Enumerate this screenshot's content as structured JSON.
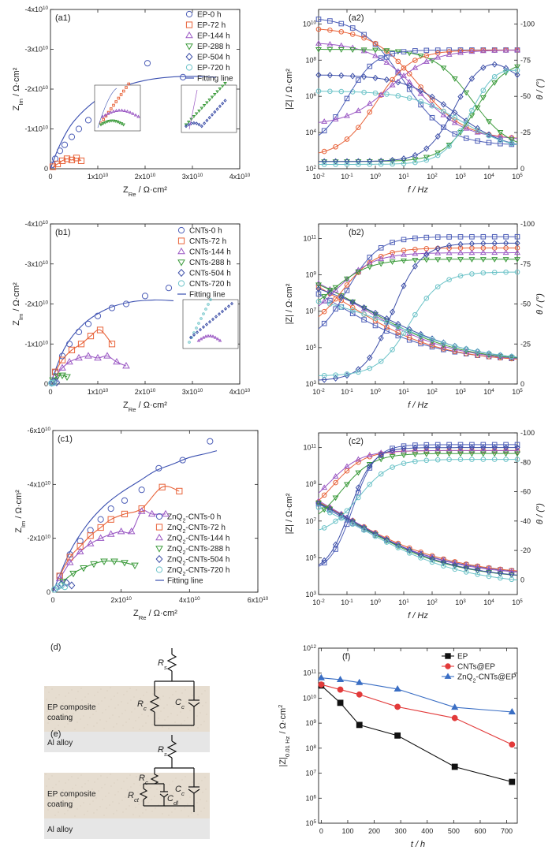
{
  "chart_data": [
    {
      "id": "a1",
      "type": "scatter",
      "panel_label": "(a1)",
      "xlabel": "Z_Re / Ω·cm²",
      "ylabel": "Z_Im / Ω·cm²",
      "xlim": [
        0,
        40000000000.0
      ],
      "ylim": [
        0,
        -40000000000.0
      ],
      "xticks": [
        "0",
        "1x10^10",
        "2x10^10",
        "3x10^10",
        "4x10^10"
      ],
      "yticks": [
        "0",
        "-1x10^10",
        "-2x10^10",
        "-3x10^10",
        "-4x10^10"
      ],
      "legend_position": "top-right",
      "series": [
        {
          "name": "EP-0 h",
          "marker": "circle",
          "color": "#4e5fb8",
          "x": [
            500000000.0,
            1000000000.0,
            2000000000.0,
            3000000000.0,
            4500000000.0,
            6000000000.0,
            8000000000.0,
            10000000000.0,
            13000000000.0,
            16000000000.0,
            20500000000.0,
            28000000000.0
          ],
          "y": [
            -1000000000.0,
            -2500000000.0,
            -4500000000.0,
            -6000000000.0,
            -8000000000.0,
            -10000000000.0,
            -12200000000.0,
            -14500000000.0,
            -16000000000.0,
            -17500000000.0,
            -26500000000.0,
            -23000000000.0
          ]
        },
        {
          "name": "EP-72 h",
          "marker": "square",
          "color": "#e8633a",
          "x": [
            500000000.0,
            1500000000.0,
            2500000000.0,
            3500000000.0,
            4500000000.0,
            5500000000.0,
            6500000000.0
          ],
          "y": [
            -500000000.0,
            -1200000000.0,
            -2000000000.0,
            -2500000000.0,
            -2200000000.0,
            -2700000000.0,
            -2000000000.0
          ]
        },
        {
          "name": "EP-144 h",
          "marker": "triangle-up",
          "color": "#9b59c4",
          "x": [],
          "y": []
        },
        {
          "name": "EP-288 h",
          "marker": "triangle-down",
          "color": "#3a9a3a",
          "x": [],
          "y": []
        },
        {
          "name": "EP-504 h",
          "marker": "diamond",
          "color": "#3d4fa8",
          "x": [],
          "y": []
        },
        {
          "name": "EP-720 h",
          "marker": "hexagon",
          "color": "#6cc3c8",
          "x": [],
          "y": []
        }
      ],
      "fit": {
        "name": "Fitting line",
        "color": "#3a4fb0",
        "x": [
          0,
          2000000000.0,
          5000000000.0,
          10000000000.0,
          15000000000.0,
          20000000000.0,
          25000000000.0,
          30000000000.0,
          35000000000.0
        ],
        "y": [
          0,
          -6000000000.0,
          -12000000000.0,
          -17500000000.0,
          -20500000000.0,
          -22200000000.0,
          -23000000000.0,
          -23200000000.0,
          -23000000000.0
        ]
      }
    },
    {
      "id": "a2",
      "type": "line",
      "panel_label": "(a2)",
      "xlabel": "f / Hz",
      "ylabel": "|Z| / Ω·cm²",
      "y2label": "θ / (°)",
      "xscale": "log",
      "yscale": "log",
      "xticks": [
        "10^-2",
        "10^-1",
        "10^0",
        "10^1",
        "10^2",
        "10^3",
        "10^4",
        "10^5"
      ],
      "yticks": [
        "10^2",
        "10^4",
        "10^6",
        "10^8",
        "10^10"
      ],
      "y2ticks": [
        "-100",
        "-75",
        "-50",
        "-25",
        "0"
      ],
      "y2lim": [
        0,
        -110
      ]
    },
    {
      "id": "b1",
      "type": "scatter",
      "panel_label": "(b1)",
      "xlabel": "Z_Re / Ω·cm²",
      "ylabel": "Z_Im / Ω·cm²",
      "xlim": [
        0,
        40000000000.0
      ],
      "ylim": [
        0,
        -40000000000.0
      ],
      "xticks": [
        "0",
        "1x10^10",
        "2x10^10",
        "3x10^10",
        "4x10^10"
      ],
      "yticks": [
        "0",
        "-1x10^10",
        "-2x10^10",
        "-3x10^10",
        "-4x10^10"
      ],
      "legend_position": "top-right",
      "series": [
        {
          "name": "CNTs-0 h",
          "marker": "circle",
          "color": "#4e5fb8",
          "x": [
            1000000000.0,
            2500000000.0,
            4000000000.0,
            6000000000.0,
            8000000000.0,
            10000000000.0,
            13000000000.0,
            16000000000.0,
            20000000000.0,
            25000000000.0
          ],
          "y": [
            -3000000000.0,
            -7000000000.0,
            -10000000000.0,
            -13000000000.0,
            -15000000000.0,
            -17000000000.0,
            -19000000000.0,
            -20000000000.0,
            -22000000000.0,
            -24000000000.0
          ]
        },
        {
          "name": "CNTs-72 h",
          "marker": "square",
          "color": "#e8633a",
          "x": [
            1000000000.0,
            2500000000.0,
            4500000000.0,
            6500000000.0,
            8500000000.0,
            10500000000.0,
            13000000000.0
          ],
          "y": [
            -3000000000.0,
            -6000000000.0,
            -8500000000.0,
            -10000000000.0,
            -12000000000.0,
            -13500000000.0,
            -10000000000.0
          ]
        },
        {
          "name": "CNTs-144 h",
          "marker": "triangle-up",
          "color": "#9b59c4",
          "x": [
            1000000000.0,
            2500000000.0,
            4000000000.0,
            6000000000.0,
            8000000000.0,
            10000000000.0,
            12000000000.0,
            14000000000.0,
            16000000000.0
          ],
          "y": [
            -2000000000.0,
            -4000000000.0,
            -5500000000.0,
            -6500000000.0,
            -7000000000.0,
            -6500000000.0,
            -7000000000.0,
            -5500000000.0,
            -4500000000.0
          ]
        },
        {
          "name": "CNTs-288 h",
          "marker": "triangle-down",
          "color": "#3a9a3a",
          "x": [
            500000000.0,
            1500000000.0,
            2500000000.0,
            3500000000.0
          ],
          "y": [
            -1000000000.0,
            -2000000000.0,
            -2200000000.0,
            -1800000000.0
          ]
        },
        {
          "name": "CNTs-504 h",
          "marker": "diamond",
          "color": "#3d4fa8",
          "x": [
            300000000.0,
            800000000.0,
            1300000000.0
          ],
          "y": [
            -300000000.0,
            -600000000.0,
            -400000000.0
          ]
        },
        {
          "name": "CNTs-720 h",
          "marker": "hexagon",
          "color": "#6cc3c8",
          "x": [
            200000000.0,
            600000000.0
          ],
          "y": [
            -200000000.0,
            -300000000.0
          ]
        }
      ],
      "fit": {
        "name": "Fitting line",
        "color": "#3a4fb0",
        "x": [
          0,
          3000000000.0,
          7000000000.0,
          12000000000.0,
          17000000000.0,
          22000000000.0,
          26000000000.0
        ],
        "y": [
          0,
          -9000000000.0,
          -15000000000.0,
          -18800000000.0,
          -20500000000.0,
          -21000000000.0,
          -20800000000.0
        ]
      }
    },
    {
      "id": "b2",
      "type": "line",
      "panel_label": "(b2)",
      "xlabel": "f / Hz",
      "ylabel": "|Z| / Ω·cm²",
      "y2label": "θ / (°)",
      "xscale": "log",
      "yscale": "log",
      "xticks": [
        "10^-2",
        "10^-1",
        "10^0",
        "10^1",
        "10^2",
        "10^3",
        "10^4",
        "10^5"
      ],
      "yticks": [
        "10^3",
        "10^5",
        "10^7",
        "10^9",
        "10^11"
      ],
      "y2ticks": [
        "-100",
        "-75",
        "-50",
        "-25",
        "0"
      ],
      "y2lim": [
        0,
        -100
      ]
    },
    {
      "id": "c1",
      "type": "scatter",
      "panel_label": "(c1)",
      "xlabel": "Z_Re / Ω·cm²",
      "ylabel": "Z_Im / Ω·cm²",
      "xlim": [
        0,
        60000000000.0
      ],
      "ylim": [
        0,
        -60000000000.0
      ],
      "xticks": [
        "0",
        "2x10^10",
        "4x10^10",
        "6x10^10"
      ],
      "yticks": [
        "0",
        "-2x10^10",
        "-4x10^10",
        "-6x10^10"
      ],
      "legend_position": "bottom-right",
      "series": [
        {
          "name": "ZnQ2-CNTs-0 h",
          "marker": "circle",
          "color": "#4e5fb8",
          "x": [
            2000000000.0,
            5000000000.0,
            8000000000.0,
            11000000000.0,
            14000000000.0,
            17000000000.0,
            21000000000.0,
            26000000000.0,
            31000000000.0,
            38000000000.0,
            46000000000.0
          ],
          "y": [
            -6000000000.0,
            -14000000000.0,
            -19000000000.0,
            -23000000000.0,
            -27000000000.0,
            -31000000000.0,
            -34000000000.0,
            -38000000000.0,
            -46000000000.0,
            -49000000000.0,
            -56000000000.0
          ]
        },
        {
          "name": "ZnQ2-CNTs-72 h",
          "marker": "square",
          "color": "#e8633a",
          "x": [
            2000000000.0,
            5000000000.0,
            8000000000.0,
            11000000000.0,
            14000000000.0,
            17000000000.0,
            21000000000.0,
            26000000000.0,
            32000000000.0,
            37000000000.0
          ],
          "y": [
            -6000000000.0,
            -13000000000.0,
            -17000000000.0,
            -21000000000.0,
            -24000000000.0,
            -27000000000.0,
            -29000000000.0,
            -31000000000.0,
            -39000000000.0,
            -37500000000.0
          ]
        },
        {
          "name": "ZnQ2-CNTs-144 h",
          "marker": "triangle-up",
          "color": "#9b59c4",
          "x": [
            2000000000.0,
            5000000000.0,
            8000000000.0,
            11000000000.0,
            14000000000.0,
            17000000000.0,
            20000000000.0,
            23000000000.0,
            26000000000.0,
            29000000000.0,
            33000000000.0
          ],
          "y": [
            -5000000000.0,
            -11000000000.0,
            -15000000000.0,
            -18000000000.0,
            -20000000000.0,
            -21500000000.0,
            -22500000000.0,
            -22500000000.0,
            -30000000000.0,
            -29000000000.0,
            -29000000000.0
          ]
        },
        {
          "name": "ZnQ2-CNTs-288 h",
          "marker": "triangle-down",
          "color": "#3a9a3a",
          "x": [
            3000000000.0,
            6000000000.0,
            9000000000.0,
            12000000000.0,
            15000000000.0,
            18000000000.0,
            21000000000.0,
            24000000000.0
          ],
          "y": [
            -4000000000.0,
            -7000000000.0,
            -9000000000.0,
            -10500000000.0,
            -11500000000.0,
            -11500000000.0,
            -11000000000.0,
            -10000000000.0
          ]
        },
        {
          "name": "ZnQ2-CNTs-504 h",
          "marker": "diamond",
          "color": "#3d4fa8",
          "x": [
            1000000000.0,
            2500000000.0,
            4000000000.0,
            5500000000.0
          ],
          "y": [
            -1500000000.0,
            -3000000000.0,
            -3500000000.0,
            -2500000000.0
          ]
        },
        {
          "name": "ZnQ2-CNTs-720 h",
          "marker": "hexagon",
          "color": "#6cc3c8",
          "x": [
            500000000.0,
            1500000000.0,
            2500000000.0,
            3500000000.0
          ],
          "y": [
            -1000000000.0,
            -2000000000.0,
            -2500000000.0,
            -2000000000.0
          ]
        }
      ],
      "fit": {
        "name": "Fitting line",
        "color": "#3a4fb0",
        "x": [
          0,
          5000000000.0,
          10000000000.0,
          15000000000.0,
          20000000000.0,
          25000000000.0,
          30000000000.0,
          35000000000.0,
          40000000000.0,
          45000000000.0,
          48000000000.0
        ],
        "y": [
          0,
          -15000000000.0,
          -25000000000.0,
          -32000000000.0,
          -37000000000.0,
          -41000000000.0,
          -45000000000.0,
          -47500000000.0,
          -50000000000.0,
          -51500000000.0,
          -52500000000.0
        ]
      }
    },
    {
      "id": "c2",
      "type": "line",
      "panel_label": "(c2)",
      "xlabel": "f / Hz",
      "ylabel": "|Z| / Ω·cm²",
      "y2label": "θ / (°)",
      "xscale": "log",
      "yscale": "log",
      "xticks": [
        "10^-2",
        "10^-1",
        "10^0",
        "10^1",
        "10^2",
        "10^3",
        "10^4",
        "10^5"
      ],
      "yticks": [
        "10^3",
        "10^5",
        "10^7",
        "10^9",
        "10^11"
      ],
      "y2ticks": [
        "-100",
        "-80",
        "-60",
        "-40",
        "-20",
        "0"
      ],
      "y2lim": [
        10,
        -100
      ]
    },
    {
      "id": "f",
      "type": "line",
      "panel_label": "(f)",
      "xlabel": "t / h",
      "ylabel": "|Z|0.01 Hz / Ω·cm²",
      "yscale": "log",
      "xlim": [
        -10,
        740
      ],
      "ylim": [
        100000.0,
        1000000000000.0
      ],
      "xticks": [
        "0",
        "100",
        "200",
        "300",
        "400",
        "500",
        "600",
        "700"
      ],
      "yticks": [
        "10^5",
        "10^6",
        "10^7",
        "10^8",
        "10^9",
        "10^10",
        "10^11",
        "10^12"
      ],
      "legend_position": "top-right",
      "series": [
        {
          "name": "EP",
          "marker": "square",
          "color": "#111111",
          "x": [
            0,
            72,
            144,
            288,
            504,
            720
          ],
          "y": [
            32000000000.0,
            6500000000.0,
            850000000.0,
            320000000.0,
            18000000.0,
            4500000.0
          ]
        },
        {
          "name": "CNTs@EP",
          "marker": "circle",
          "color": "#e23a3a",
          "x": [
            0,
            72,
            144,
            288,
            504,
            720
          ],
          "y": [
            35000000000.0,
            22000000000.0,
            14000000000.0,
            4500000000.0,
            1600000000.0,
            140000000.0
          ]
        },
        {
          "name": "ZnQ2-CNTs@EP",
          "marker": "triangle-up",
          "color": "#3a6ec4",
          "x": [
            0,
            72,
            144,
            288,
            504,
            720
          ],
          "y": [
            65000000000.0,
            55000000000.0,
            42000000000.0,
            23000000000.0,
            4300000000.0,
            2800000000.0
          ]
        }
      ]
    }
  ],
  "diagrams": {
    "d": {
      "panel_label": "(d)",
      "coating_label": "EP composite coating",
      "coating_line1": "EP composite",
      "coating_line2": "coating",
      "substrate_label": "Al alloy",
      "elements": [
        "R_s",
        "R_c",
        "C_c"
      ]
    },
    "e": {
      "panel_label": "(e)",
      "coating_label": "EP composite coating",
      "coating_line1": "EP composite",
      "coating_line2": "coating",
      "substrate_label": "Al alloy",
      "elements": [
        "R_s",
        "R_c",
        "R_ct",
        "C_dl",
        "C_c"
      ]
    }
  },
  "colors": {
    "c0": "#4e5fb8",
    "c72": "#e8633a",
    "c144": "#9b59c4",
    "c288": "#3a9a3a",
    "c504": "#3d4fa8",
    "c720": "#6cc3c8",
    "fit": "#3a4fb0",
    "coating": "#e6ddd0",
    "substrate": "#e6e6e6"
  }
}
